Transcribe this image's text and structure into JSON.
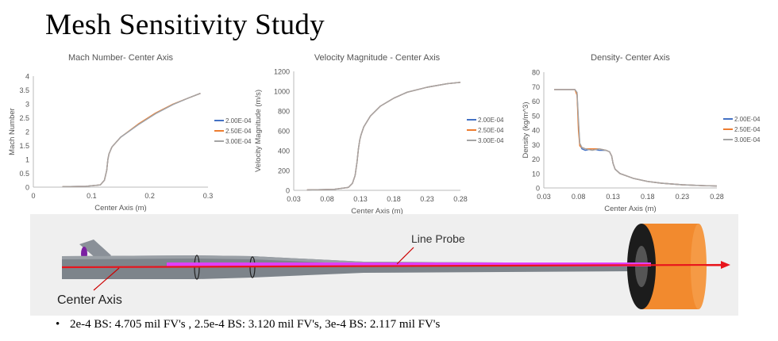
{
  "slide": {
    "title": "Mesh Sensitivity Study",
    "bullet": "2e-4 BS: 4.705 mil FV's ,  2.5e-4 BS: 3.120 mil FV's, 3e-4 BS: 2.117 mil FV's"
  },
  "geometry": {
    "line_probe_label": "Line Probe",
    "center_axis_label": "Center Axis",
    "colors": {
      "body": "#7d848b",
      "cylinder": "#f28a2e",
      "probe": "#e040fb",
      "axis": "#e8141c"
    }
  },
  "series_colors": {
    "2.00E-04": "#4472c4",
    "2.50E-04": "#ed7d31",
    "3.00E-04": "#a5a5a5"
  },
  "chart_data": [
    {
      "type": "line",
      "title": "Mach Number- Center Axis",
      "xlabel": "Center Axis (m)",
      "ylabel": "Mach Number",
      "xlim": [
        0,
        0.3
      ],
      "ylim": [
        0,
        4
      ],
      "xticks": [
        0,
        0.1,
        0.2,
        0.3
      ],
      "xtick_labels": [
        "0",
        "0.1",
        "0.2",
        "0.3"
      ],
      "yticks": [
        0,
        0.5,
        1,
        1.5,
        2,
        2.5,
        3,
        3.5,
        4
      ],
      "ytick_labels": [
        "0",
        "0.5",
        "1",
        "1.5",
        "2",
        "2.5",
        "3",
        "3.5",
        "4"
      ],
      "legend_position": "right",
      "series": [
        {
          "name": "2.00E-04",
          "x": [
            0.05,
            0.09,
            0.115,
            0.122,
            0.126,
            0.128,
            0.13,
            0.135,
            0.15,
            0.18,
            0.21,
            0.24,
            0.265,
            0.287
          ],
          "y": [
            0.02,
            0.03,
            0.08,
            0.25,
            0.6,
            1.0,
            1.2,
            1.45,
            1.8,
            2.25,
            2.65,
            2.98,
            3.2,
            3.38
          ]
        },
        {
          "name": "2.50E-04",
          "x": [
            0.05,
            0.09,
            0.115,
            0.122,
            0.126,
            0.128,
            0.13,
            0.135,
            0.15,
            0.18,
            0.21,
            0.24,
            0.265,
            0.287
          ],
          "y": [
            0.02,
            0.03,
            0.08,
            0.25,
            0.6,
            1.0,
            1.2,
            1.45,
            1.8,
            2.27,
            2.67,
            2.99,
            3.2,
            3.38
          ]
        },
        {
          "name": "3.00E-04",
          "x": [
            0.05,
            0.09,
            0.115,
            0.122,
            0.126,
            0.128,
            0.13,
            0.135,
            0.15,
            0.18,
            0.21,
            0.24,
            0.265,
            0.287
          ],
          "y": [
            0.02,
            0.03,
            0.08,
            0.25,
            0.6,
            1.0,
            1.2,
            1.45,
            1.8,
            2.25,
            2.65,
            2.98,
            3.2,
            3.38
          ]
        }
      ]
    },
    {
      "type": "line",
      "title": "Velocity Magnitude - Center Axis",
      "xlabel": "Center Axis (m)",
      "ylabel": "Velocity Magnitude (m/s)",
      "xlim": [
        0.03,
        0.28
      ],
      "ylim": [
        0,
        1200
      ],
      "xticks": [
        0.03,
        0.08,
        0.13,
        0.18,
        0.23,
        0.28
      ],
      "xtick_labels": [
        "0.03",
        "0.08",
        "0.13",
        "0.18",
        "0.23",
        "0.28"
      ],
      "yticks": [
        0,
        200,
        400,
        600,
        800,
        1000,
        1200
      ],
      "ytick_labels": [
        "0",
        "200",
        "400",
        "600",
        "800",
        "1000",
        "1200"
      ],
      "legend_position": "right",
      "series": [
        {
          "name": "2.00E-04",
          "x": [
            0.05,
            0.09,
            0.112,
            0.118,
            0.122,
            0.125,
            0.127,
            0.129,
            0.131,
            0.135,
            0.145,
            0.16,
            0.18,
            0.2,
            0.23,
            0.26,
            0.28
          ],
          "y": [
            5,
            10,
            30,
            70,
            150,
            290,
            420,
            510,
            560,
            640,
            750,
            850,
            930,
            990,
            1040,
            1075,
            1090
          ]
        },
        {
          "name": "2.50E-04",
          "x": [
            0.05,
            0.09,
            0.112,
            0.118,
            0.122,
            0.125,
            0.127,
            0.129,
            0.131,
            0.135,
            0.145,
            0.16,
            0.18,
            0.2,
            0.23,
            0.26,
            0.28
          ],
          "y": [
            5,
            10,
            30,
            70,
            150,
            290,
            420,
            510,
            560,
            640,
            750,
            850,
            930,
            990,
            1040,
            1075,
            1090
          ]
        },
        {
          "name": "3.00E-04",
          "x": [
            0.05,
            0.09,
            0.112,
            0.118,
            0.122,
            0.125,
            0.127,
            0.129,
            0.131,
            0.135,
            0.145,
            0.16,
            0.18,
            0.2,
            0.23,
            0.26,
            0.28
          ],
          "y": [
            5,
            10,
            30,
            70,
            150,
            290,
            420,
            510,
            560,
            640,
            750,
            850,
            930,
            990,
            1040,
            1075,
            1090
          ]
        }
      ]
    },
    {
      "type": "line",
      "title": "Density- Center Axis",
      "xlabel": "Center Axis (m)",
      "ylabel": "Density (kg/m^3)",
      "xlim": [
        0.03,
        0.28
      ],
      "ylim": [
        0,
        80
      ],
      "xticks": [
        0.03,
        0.08,
        0.13,
        0.18,
        0.23,
        0.28
      ],
      "xtick_labels": [
        "0.03",
        "0.08",
        "0.13",
        "0.18",
        "0.23",
        "0.28"
      ],
      "yticks": [
        0,
        10,
        20,
        30,
        40,
        50,
        60,
        70,
        80
      ],
      "ytick_labels": [
        "0",
        "10",
        "20",
        "30",
        "40",
        "50",
        "60",
        "70",
        "80"
      ],
      "legend_position": "right",
      "series": [
        {
          "name": "2.00E-04",
          "x": [
            0.045,
            0.075,
            0.078,
            0.08,
            0.082,
            0.085,
            0.09,
            0.1,
            0.11,
            0.12,
            0.125,
            0.128,
            0.13,
            0.133,
            0.14,
            0.16,
            0.18,
            0.2,
            0.23,
            0.26,
            0.28
          ],
          "y": [
            68,
            68,
            65,
            45,
            30,
            27,
            26,
            27,
            26,
            26,
            25,
            22,
            17,
            13,
            10,
            6.5,
            4.5,
            3.3,
            2.2,
            1.6,
            1.3
          ]
        },
        {
          "name": "2.50E-04",
          "x": [
            0.045,
            0.075,
            0.078,
            0.08,
            0.082,
            0.085,
            0.09,
            0.1,
            0.11,
            0.12,
            0.125,
            0.128,
            0.13,
            0.133,
            0.14,
            0.16,
            0.18,
            0.2,
            0.23,
            0.26,
            0.28
          ],
          "y": [
            68,
            68,
            64,
            40,
            29,
            28,
            27,
            27,
            27,
            26,
            25,
            22,
            17,
            13,
            10,
            6.5,
            4.5,
            3.3,
            2.2,
            1.6,
            1.3
          ]
        },
        {
          "name": "3.00E-04",
          "x": [
            0.045,
            0.075,
            0.078,
            0.08,
            0.082,
            0.085,
            0.09,
            0.1,
            0.11,
            0.12,
            0.125,
            0.128,
            0.13,
            0.133,
            0.14,
            0.16,
            0.18,
            0.2,
            0.23,
            0.26,
            0.28
          ],
          "y": [
            68,
            68,
            66,
            48,
            31,
            28,
            27,
            26,
            27,
            26,
            25,
            22,
            17,
            13,
            10,
            6.5,
            4.5,
            3.3,
            2.2,
            1.6,
            1.3
          ]
        }
      ]
    }
  ]
}
